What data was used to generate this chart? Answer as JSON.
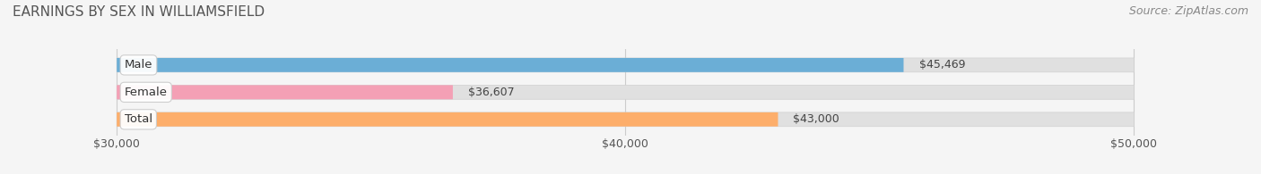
{
  "title": "EARNINGS BY SEX IN WILLIAMSFIELD",
  "source": "Source: ZipAtlas.com",
  "categories": [
    "Male",
    "Female",
    "Total"
  ],
  "values": [
    45469,
    36607,
    43000
  ],
  "bar_colors": [
    "#6baed6",
    "#f4a0b5",
    "#fdae6b"
  ],
  "value_labels": [
    "$45,469",
    "$36,607",
    "$43,000"
  ],
  "xmin": 30000,
  "xmax": 50000,
  "xticks": [
    30000,
    40000,
    50000
  ],
  "xtick_labels": [
    "$30,000",
    "$40,000",
    "$50,000"
  ],
  "bar_height": 0.52,
  "background_color": "#f5f5f5",
  "bg_bar_color": "#e0e0e0",
  "title_fontsize": 11,
  "source_fontsize": 9,
  "tick_fontsize": 9,
  "label_fontsize": 9.5,
  "value_fontsize": 9
}
